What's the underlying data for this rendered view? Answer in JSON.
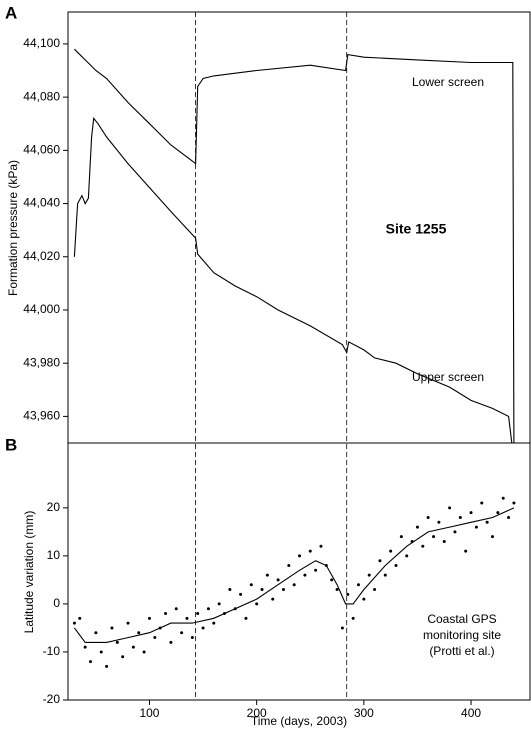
{
  "chart_data": [
    {
      "type": "line",
      "panel": "A",
      "ylabel": "Formation pressure (kPa)",
      "xlim": [
        24,
        455
      ],
      "ylim": [
        43950,
        44112
      ],
      "yticks": [
        {
          "value": 43960,
          "label": "43,960"
        },
        {
          "value": 43980,
          "label": "43,980"
        },
        {
          "value": 44000,
          "label": "44,000"
        },
        {
          "value": 44020,
          "label": "44,020"
        },
        {
          "value": 44040,
          "label": "44,040"
        },
        {
          "value": 44060,
          "label": "44,060"
        },
        {
          "value": 44080,
          "label": "44,080"
        },
        {
          "value": 44100,
          "label": "44,100"
        }
      ],
      "vlines": [
        143,
        284
      ],
      "annotations": [
        "Lower screen",
        "Upper screen",
        "Site 1255"
      ],
      "series": [
        {
          "name": "Lower screen",
          "color": "#000000",
          "x": [
            30,
            40,
            50,
            60,
            80,
            100,
            120,
            140,
            143,
            145,
            150,
            160,
            200,
            250,
            283,
            285,
            300,
            350,
            400,
            435,
            439,
            440
          ],
          "values": [
            44098,
            44094,
            44090,
            44087,
            44078,
            44070,
            44062,
            44056,
            44055,
            44084,
            44087,
            44088,
            44090,
            44092,
            44090,
            44096,
            44095,
            44094,
            44093,
            44093,
            44093,
            43950
          ]
        },
        {
          "name": "Upper screen",
          "color": "#000000",
          "x": [
            30,
            33,
            37,
            40,
            43,
            46,
            48,
            52,
            60,
            80,
            100,
            120,
            143,
            145,
            160,
            180,
            200,
            220,
            250,
            280,
            284,
            286,
            300,
            310,
            330,
            350,
            380,
            400,
            420,
            435,
            438
          ],
          "values": [
            44020,
            44040,
            44043,
            44040,
            44042,
            44065,
            44072,
            44070,
            44065,
            44055,
            44046,
            44037,
            44027,
            44021,
            44014,
            44009,
            44005,
            44000,
            43994,
            43987,
            43984,
            43988,
            43985,
            43982,
            43980,
            43976,
            43971,
            43966,
            43963,
            43960,
            43950
          ]
        }
      ]
    },
    {
      "type": "scatter",
      "panel": "B",
      "xlabel": "Time (days, 2003)",
      "ylabel": "Latitude variation (mm)",
      "xlim": [
        24,
        455
      ],
      "ylim": [
        -20,
        33.5
      ],
      "xticks": [
        100,
        200,
        300,
        400
      ],
      "yticks": [
        -20,
        -10,
        0,
        10,
        20
      ],
      "annotations": [
        "Coastal GPS",
        "monitoring site",
        "(Protti et al.)"
      ],
      "series": [
        {
          "style": "points",
          "color": "#000000",
          "x": [
            30,
            35,
            40,
            45,
            50,
            55,
            60,
            65,
            70,
            75,
            80,
            85,
            90,
            95,
            100,
            105,
            110,
            115,
            120,
            125,
            130,
            135,
            140,
            145,
            150,
            155,
            160,
            165,
            170,
            175,
            180,
            185,
            190,
            195,
            200,
            205,
            210,
            215,
            220,
            225,
            230,
            235,
            240,
            245,
            250,
            255,
            260,
            265,
            270,
            275,
            280,
            285,
            290,
            295,
            300,
            305,
            310,
            315,
            320,
            325,
            330,
            335,
            340,
            345,
            350,
            355,
            360,
            365,
            370,
            375,
            380,
            385,
            390,
            395,
            400,
            405,
            410,
            415,
            420,
            425,
            430,
            435,
            440
          ],
          "values": [
            -4,
            -3,
            -9,
            -12,
            -6,
            -10,
            -13,
            -5,
            -8,
            -11,
            -4,
            -9,
            -6,
            -10,
            -3,
            -7,
            -5,
            -2,
            -8,
            -1,
            -6,
            -3,
            -7,
            -2,
            -5,
            -1,
            -4,
            0,
            -2,
            3,
            -1,
            2,
            -3,
            4,
            0,
            3,
            6,
            1,
            5,
            3,
            8,
            4,
            10,
            6,
            11,
            7,
            12,
            8,
            5,
            3,
            -5,
            2,
            -3,
            4,
            1,
            6,
            3,
            9,
            6,
            11,
            8,
            14,
            10,
            13,
            16,
            12,
            18,
            14,
            17,
            13,
            20,
            15,
            18,
            11,
            19,
            16,
            21,
            17,
            14,
            19,
            22,
            18,
            21
          ]
        },
        {
          "style": "line",
          "color": "#000000",
          "x": [
            30,
            40,
            60,
            80,
            100,
            120,
            140,
            160,
            180,
            200,
            220,
            240,
            255,
            265,
            275,
            283,
            290,
            300,
            320,
            340,
            360,
            380,
            400,
            420,
            440
          ],
          "values": [
            -5,
            -8,
            -8,
            -7,
            -6,
            -4,
            -4,
            -3,
            -1,
            1,
            4,
            7,
            9,
            8,
            4,
            0,
            0,
            3,
            8,
            12,
            15,
            16,
            17,
            18,
            20
          ]
        }
      ]
    }
  ]
}
